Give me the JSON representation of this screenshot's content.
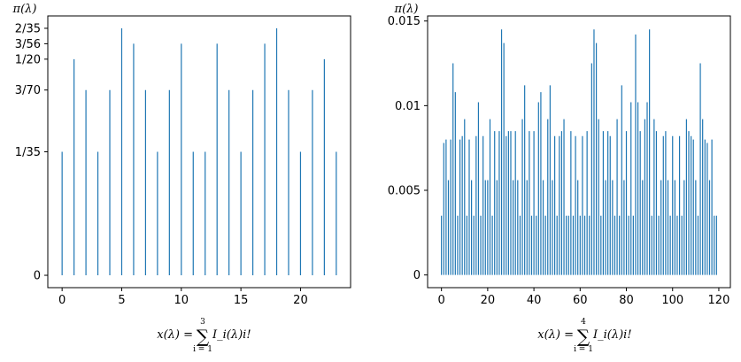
{
  "chart_data": [
    {
      "type": "bar",
      "ylabel": "π(λ)",
      "xlabel": {
        "lhs": "x(λ) =",
        "sum_symbol": "∑",
        "upper": "3",
        "lower": "i = 1",
        "rhs": "I_i(λ)i!"
      },
      "x": [
        0,
        1,
        2,
        3,
        4,
        5,
        6,
        7,
        8,
        9,
        10,
        11,
        12,
        13,
        14,
        15,
        16,
        17,
        18,
        19,
        20,
        21,
        22,
        23
      ],
      "values": [
        0.02857,
        0.05,
        0.04286,
        0.02857,
        0.04286,
        0.05714,
        0.05357,
        0.04286,
        0.02857,
        0.04286,
        0.05357,
        0.02857,
        0.02857,
        0.05357,
        0.04286,
        0.02857,
        0.04286,
        0.05357,
        0.05714,
        0.04286,
        0.02857,
        0.04286,
        0.05,
        0.02857
      ],
      "xlim": [
        -1.2,
        24.2
      ],
      "ylim": [
        -0.00286,
        0.06
      ],
      "xticks": [
        0,
        5,
        10,
        15,
        20
      ],
      "xtick_labels": [
        "0",
        "5",
        "10",
        "15",
        "20"
      ],
      "yticks": [
        0,
        0.02857,
        0.04286,
        0.05,
        0.05357,
        0.05714
      ],
      "ytick_labels": [
        "0",
        "1/35",
        "3/70",
        "1/20",
        "3/56",
        "2/35"
      ],
      "color": "#1f77b4",
      "grid": false
    },
    {
      "type": "bar",
      "ylabel": "π(λ)",
      "xlabel": {
        "lhs": "x(λ) =",
        "sum_symbol": "∑",
        "upper": "4",
        "lower": "i = 1",
        "rhs": "I_i(λ)i!"
      },
      "x": [
        0,
        1,
        2,
        3,
        4,
        5,
        6,
        7,
        8,
        9,
        10,
        11,
        12,
        13,
        14,
        15,
        16,
        17,
        18,
        19,
        20,
        21,
        22,
        23,
        24,
        25,
        26,
        27,
        28,
        29,
        30,
        31,
        32,
        33,
        34,
        35,
        36,
        37,
        38,
        39,
        40,
        41,
        42,
        43,
        44,
        45,
        46,
        47,
        48,
        49,
        50,
        51,
        52,
        53,
        54,
        55,
        56,
        57,
        58,
        59,
        60,
        61,
        62,
        63,
        64,
        65,
        66,
        67,
        68,
        69,
        70,
        71,
        72,
        73,
        74,
        75,
        76,
        77,
        78,
        79,
        80,
        81,
        82,
        83,
        84,
        85,
        86,
        87,
        88,
        89,
        90,
        91,
        92,
        93,
        94,
        95,
        96,
        97,
        98,
        99,
        100,
        101,
        102,
        103,
        104,
        105,
        106,
        107,
        108,
        109,
        110,
        111,
        112,
        113,
        114,
        115,
        116,
        117,
        118,
        119
      ],
      "values": [
        0.0035,
        0.0078,
        0.008,
        0.0056,
        0.008,
        0.0125,
        0.0108,
        0.0035,
        0.008,
        0.0082,
        0.0092,
        0.0035,
        0.008,
        0.0056,
        0.0035,
        0.0082,
        0.0102,
        0.0035,
        0.0082,
        0.0056,
        0.0056,
        0.0092,
        0.0035,
        0.0085,
        0.0056,
        0.0085,
        0.0145,
        0.0137,
        0.0082,
        0.0085,
        0.0085,
        0.0056,
        0.0085,
        0.0056,
        0.0035,
        0.0092,
        0.0112,
        0.0056,
        0.0085,
        0.0035,
        0.0085,
        0.0035,
        0.0102,
        0.0108,
        0.0056,
        0.0035,
        0.0092,
        0.0112,
        0.0056,
        0.0082,
        0.0035,
        0.0082,
        0.0085,
        0.0092,
        0.0035,
        0.0035,
        0.0085,
        0.0035,
        0.0082,
        0.0056,
        0.0035,
        0.0082,
        0.0035,
        0.0085,
        0.0035,
        0.0125,
        0.0145,
        0.0137,
        0.0092,
        0.0035,
        0.0085,
        0.0056,
        0.0085,
        0.0082,
        0.0056,
        0.0035,
        0.0092,
        0.0035,
        0.0112,
        0.0056,
        0.0085,
        0.0035,
        0.0102,
        0.0035,
        0.0142,
        0.0102,
        0.0085,
        0.0056,
        0.0092,
        0.0102,
        0.0145,
        0.0035,
        0.0092,
        0.0085,
        0.0035,
        0.0056,
        0.0082,
        0.0085,
        0.0056,
        0.0035,
        0.0082,
        0.0056,
        0.0035,
        0.0082,
        0.0035,
        0.0056,
        0.0092,
        0.0085,
        0.0082,
        0.008,
        0.0056,
        0.0035,
        0.0125,
        0.0092,
        0.008,
        0.0078,
        0.0056,
        0.008,
        0.0035,
        0.0035
      ],
      "xlim": [
        -6,
        125
      ],
      "ylim": [
        -0.00075,
        0.0153
      ],
      "xticks": [
        0,
        20,
        40,
        60,
        80,
        100,
        120
      ],
      "xtick_labels": [
        "0",
        "20",
        "40",
        "60",
        "80",
        "100",
        "120"
      ],
      "yticks": [
        0,
        0.005,
        0.01,
        0.015
      ],
      "ytick_labels": [
        "0",
        "0.005",
        "0.01",
        "0.015"
      ],
      "color": "#1f77b4",
      "grid": false
    }
  ]
}
